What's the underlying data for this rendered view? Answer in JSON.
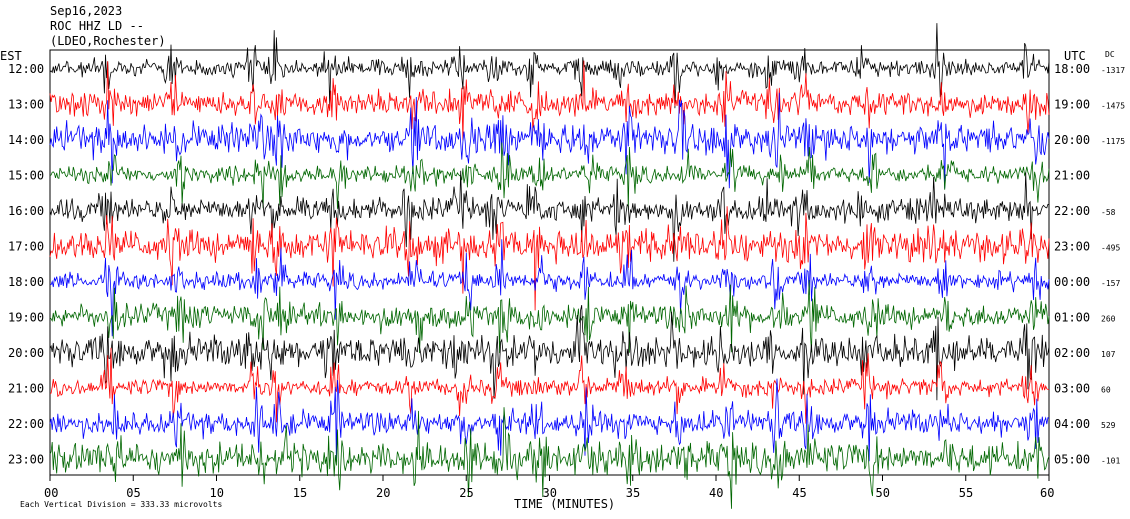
{
  "header": {
    "line1": "Sep16,2023",
    "line2": "ROC HHZ LD --",
    "line3": "(LDEO,Rochester)"
  },
  "footer": {
    "scale_note": "Each Vertical Division = 333.33 microvolts"
  },
  "chart_data": {
    "type": "line",
    "title": "",
    "xlabel": "TIME (MINUTES)",
    "left_axis_label": "EST",
    "right_axis_label": "UTC",
    "dc_label": "DC",
    "xlim": [
      0,
      60
    ],
    "x_ticks": [
      0,
      5,
      10,
      15,
      20,
      25,
      30,
      35,
      40,
      45,
      50,
      55,
      60
    ],
    "x_tick_labels": [
      "00",
      "05",
      "10",
      "15",
      "20",
      "25",
      "30",
      "35",
      "40",
      "45",
      "50",
      "55",
      "60"
    ],
    "trace_colors": [
      "#000000",
      "#ff0000",
      "#0000ff",
      "#006600"
    ],
    "rows": [
      {
        "est": "12:00",
        "utc": "18:00",
        "dc": "-1317"
      },
      {
        "est": "13:00",
        "utc": "19:00",
        "dc": "-1475"
      },
      {
        "est": "14:00",
        "utc": "20:00",
        "dc": "-1175"
      },
      {
        "est": "15:00",
        "utc": "21:00",
        "dc": ""
      },
      {
        "est": "16:00",
        "utc": "22:00",
        "dc": "-58"
      },
      {
        "est": "17:00",
        "utc": "23:00",
        "dc": "-495"
      },
      {
        "est": "18:00",
        "utc": "00:00",
        "dc": "-157"
      },
      {
        "est": "19:00",
        "utc": "01:00",
        "dc": "260"
      },
      {
        "est": "20:00",
        "utc": "02:00",
        "dc": "107"
      },
      {
        "est": "21:00",
        "utc": "03:00",
        "dc": "60"
      },
      {
        "est": "22:00",
        "utc": "04:00",
        "dc": "529"
      },
      {
        "est": "23:00",
        "utc": "05:00",
        "dc": "-101"
      }
    ]
  }
}
